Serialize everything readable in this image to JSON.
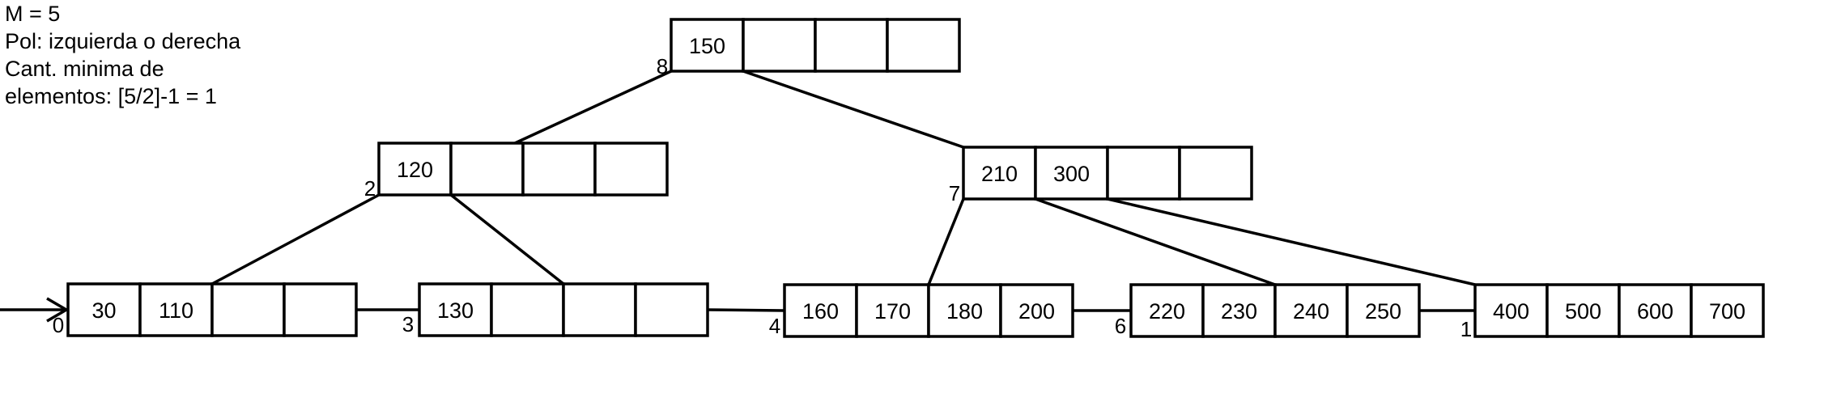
{
  "params": {
    "lines": [
      "M = 5",
      "Pol: izquierda o derecha",
      "Cant. minima de",
      "elementos: [5/2]-1 = 1"
    ]
  },
  "tree": {
    "slots_per_node": 4,
    "nodes": [
      {
        "id": "n8",
        "label": "8",
        "keys": [
          "150",
          "",
          "",
          ""
        ]
      },
      {
        "id": "n2",
        "label": "2",
        "keys": [
          "120",
          "",
          "",
          ""
        ]
      },
      {
        "id": "n7",
        "label": "7",
        "keys": [
          "210",
          "300",
          "",
          ""
        ]
      },
      {
        "id": "n0",
        "label": "0",
        "keys": [
          "30",
          "110",
          "",
          ""
        ]
      },
      {
        "id": "n3",
        "label": "3",
        "keys": [
          "130",
          "",
          "",
          ""
        ]
      },
      {
        "id": "n4",
        "label": "4",
        "keys": [
          "160",
          "170",
          "180",
          "200"
        ]
      },
      {
        "id": "n6",
        "label": "6",
        "keys": [
          "220",
          "230",
          "240",
          "250"
        ]
      },
      {
        "id": "n1",
        "label": "1",
        "keys": [
          "400",
          "500",
          "600",
          "700"
        ]
      }
    ],
    "edges": [
      {
        "from": "n8",
        "pointer": 0,
        "to": "n2"
      },
      {
        "from": "n8",
        "pointer": 1,
        "to": "n7"
      },
      {
        "from": "n2",
        "pointer": 0,
        "to": "n0"
      },
      {
        "from": "n2",
        "pointer": 1,
        "to": "n3"
      },
      {
        "from": "n7",
        "pointer": 0,
        "to": "n4"
      },
      {
        "from": "n7",
        "pointer": 1,
        "to": "n6"
      },
      {
        "from": "n7",
        "pointer": 2,
        "to": "n1"
      }
    ],
    "leaf_chain": [
      "n0",
      "n3",
      "n4",
      "n6",
      "n1"
    ]
  }
}
